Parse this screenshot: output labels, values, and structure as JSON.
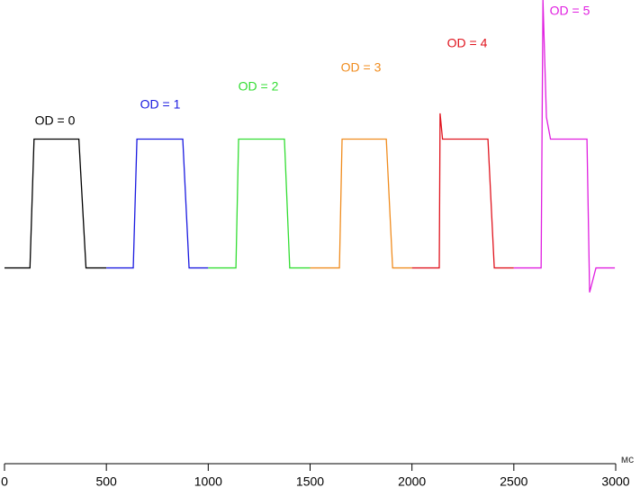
{
  "chart_data": {
    "type": "line",
    "x_label": "мс",
    "xlim": [
      0,
      3000
    ],
    "xticks": [
      0,
      500,
      1000,
      1500,
      2000,
      2500,
      3000
    ],
    "ylim": [
      -1.52,
      2.08
    ],
    "series": [
      {
        "name": "OD = 0",
        "color": "#000000",
        "x": [
          0,
          125,
          145,
          365,
          400,
          500
        ],
        "values": [
          0,
          0,
          1,
          1,
          0,
          0
        ]
      },
      {
        "name": "OD = 1",
        "color": "#1a1ae0",
        "x": [
          500,
          632,
          650,
          875,
          906,
          1000
        ],
        "values": [
          0,
          0,
          1,
          1,
          0,
          0
        ]
      },
      {
        "name": "OD = 2",
        "color": "#33dd33",
        "x": [
          1000,
          1136,
          1149,
          1374,
          1400,
          1500
        ],
        "values": [
          0,
          0,
          1,
          1,
          0,
          0
        ]
      },
      {
        "name": "OD = 3",
        "color": "#f08c1e",
        "x": [
          1500,
          1644,
          1657,
          1874,
          1905,
          2000
        ],
        "values": [
          0,
          0,
          1,
          1,
          0,
          0
        ]
      },
      {
        "name": "OD = 4",
        "color": "#e0141e",
        "x": [
          2000,
          2134,
          2138,
          2150,
          2373,
          2404,
          2500
        ],
        "values": [
          0,
          0,
          1.2,
          1,
          1,
          0,
          0
        ]
      },
      {
        "name": "OD = 5",
        "color": "#e01fe0",
        "x": [
          2500,
          2634,
          2643,
          2660,
          2680,
          2859,
          2872,
          2903,
          2996
        ],
        "values": [
          0,
          0,
          2.08,
          1.17,
          1,
          1,
          -0.19,
          0,
          0
        ]
      }
    ]
  }
}
